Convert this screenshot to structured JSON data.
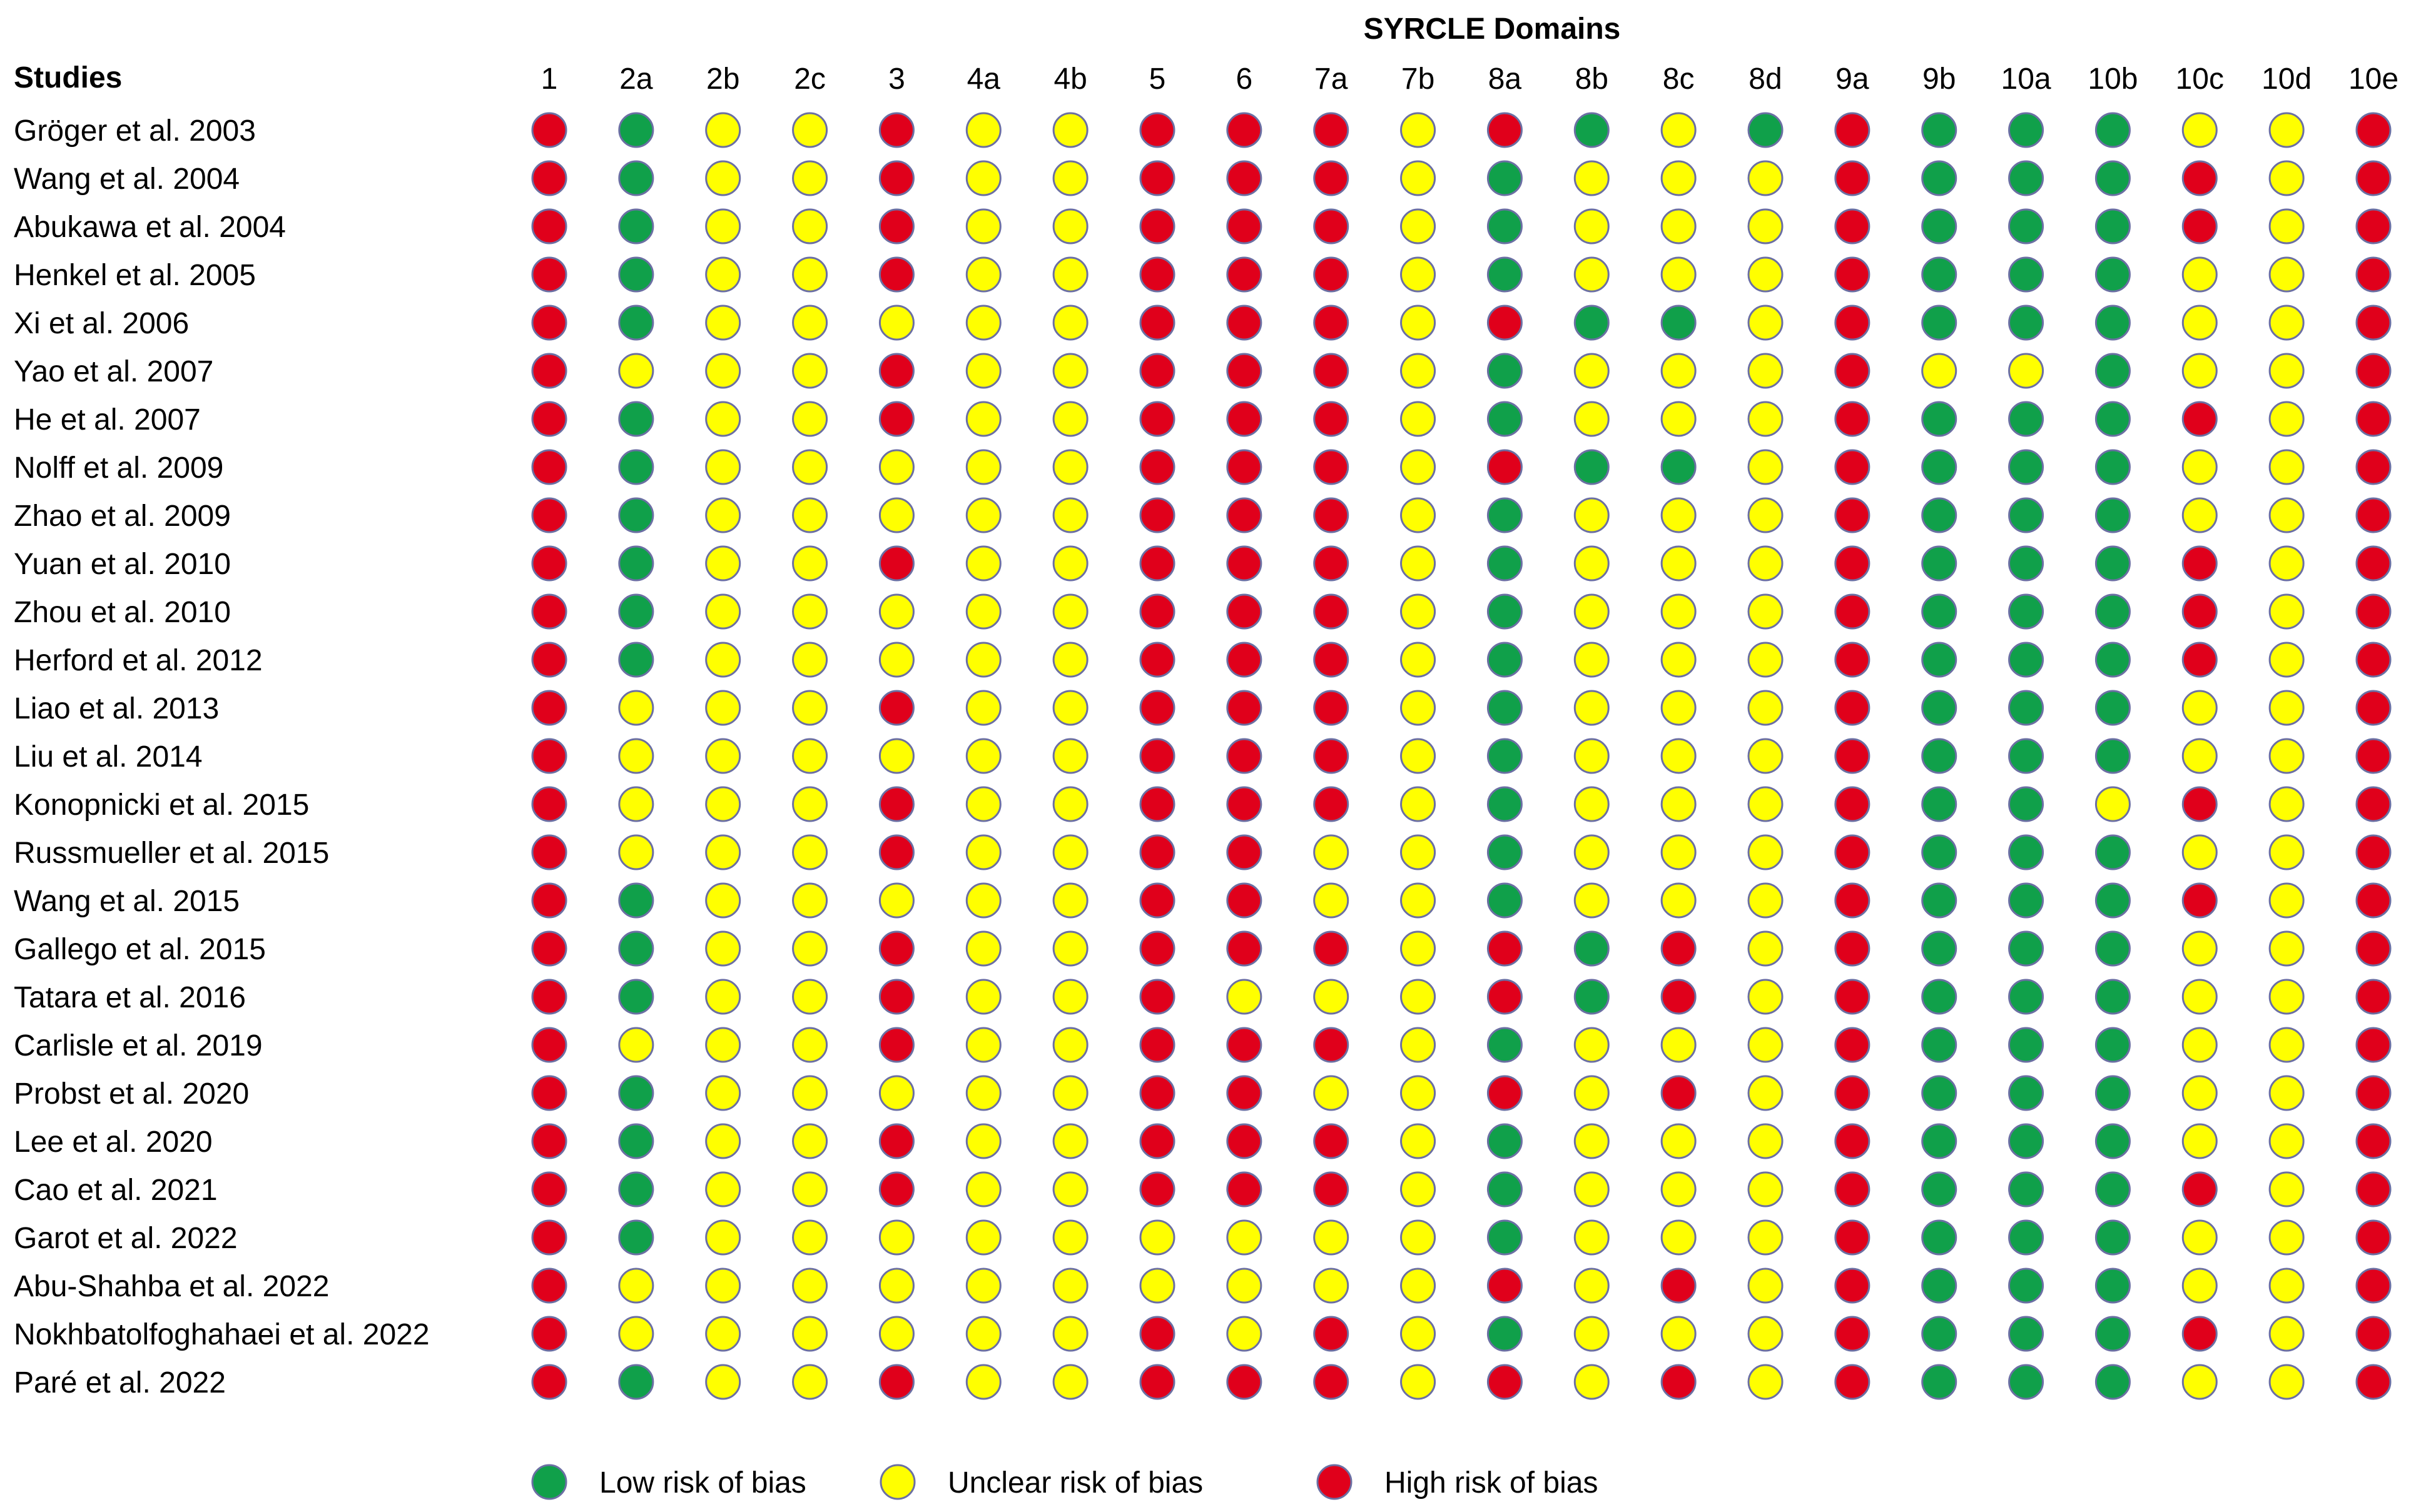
{
  "chart_data": {
    "type": "table",
    "title": "SYRCLE Domains",
    "row_header": "Studies",
    "domains": [
      "1",
      "2a",
      "2b",
      "2c",
      "3",
      "4a",
      "4b",
      "5",
      "6",
      "7a",
      "7b",
      "8a",
      "8b",
      "8c",
      "8d",
      "9a",
      "9b",
      "10a",
      "10b",
      "10c",
      "10d",
      "10e"
    ],
    "rating_codes": {
      "L": "low",
      "U": "unclear",
      "H": "high"
    },
    "colors": {
      "L": "#10a04a",
      "U": "#ffff00",
      "H": "#e0001b",
      "outline": "#6b6fa3"
    },
    "legend": [
      {
        "code": "L",
        "label": "Low risk of bias"
      },
      {
        "code": "U",
        "label": "Unclear risk of bias"
      },
      {
        "code": "H",
        "label": "High risk of bias"
      }
    ],
    "studies": [
      {
        "name": "Gröger et al. 2003",
        "ratings": [
          "H",
          "L",
          "U",
          "U",
          "H",
          "U",
          "U",
          "H",
          "H",
          "H",
          "U",
          "H",
          "L",
          "U",
          "L",
          "H",
          "L",
          "L",
          "L",
          "U",
          "U",
          "H"
        ]
      },
      {
        "name": "Wang et al. 2004",
        "ratings": [
          "H",
          "L",
          "U",
          "U",
          "H",
          "U",
          "U",
          "H",
          "H",
          "H",
          "U",
          "L",
          "U",
          "U",
          "U",
          "H",
          "L",
          "L",
          "L",
          "H",
          "U",
          "H"
        ]
      },
      {
        "name": "Abukawa et al. 2004",
        "ratings": [
          "H",
          "L",
          "U",
          "U",
          "H",
          "U",
          "U",
          "H",
          "H",
          "H",
          "U",
          "L",
          "U",
          "U",
          "U",
          "H",
          "L",
          "L",
          "L",
          "H",
          "U",
          "H"
        ]
      },
      {
        "name": "Henkel et al. 2005",
        "ratings": [
          "H",
          "L",
          "U",
          "U",
          "H",
          "U",
          "U",
          "H",
          "H",
          "H",
          "U",
          "L",
          "U",
          "U",
          "U",
          "H",
          "L",
          "L",
          "L",
          "U",
          "U",
          "H"
        ]
      },
      {
        "name": "Xi et al. 2006",
        "ratings": [
          "H",
          "L",
          "U",
          "U",
          "U",
          "U",
          "U",
          "H",
          "H",
          "H",
          "U",
          "H",
          "L",
          "L",
          "U",
          "H",
          "L",
          "L",
          "L",
          "U",
          "U",
          "H"
        ]
      },
      {
        "name": "Yao et al. 2007",
        "ratings": [
          "H",
          "U",
          "U",
          "U",
          "H",
          "U",
          "U",
          "H",
          "H",
          "H",
          "U",
          "L",
          "U",
          "U",
          "U",
          "H",
          "U",
          "U",
          "L",
          "U",
          "U",
          "H"
        ]
      },
      {
        "name": "He et al. 2007",
        "ratings": [
          "H",
          "L",
          "U",
          "U",
          "H",
          "U",
          "U",
          "H",
          "H",
          "H",
          "U",
          "L",
          "U",
          "U",
          "U",
          "H",
          "L",
          "L",
          "L",
          "H",
          "U",
          "H"
        ]
      },
      {
        "name": "Nolff et al. 2009",
        "ratings": [
          "H",
          "L",
          "U",
          "U",
          "U",
          "U",
          "U",
          "H",
          "H",
          "H",
          "U",
          "H",
          "L",
          "L",
          "U",
          "H",
          "L",
          "L",
          "L",
          "U",
          "U",
          "H"
        ]
      },
      {
        "name": "Zhao et al. 2009",
        "ratings": [
          "H",
          "L",
          "U",
          "U",
          "U",
          "U",
          "U",
          "H",
          "H",
          "H",
          "U",
          "L",
          "U",
          "U",
          "U",
          "H",
          "L",
          "L",
          "L",
          "U",
          "U",
          "H"
        ]
      },
      {
        "name": "Yuan et al. 2010",
        "ratings": [
          "H",
          "L",
          "U",
          "U",
          "H",
          "U",
          "U",
          "H",
          "H",
          "H",
          "U",
          "L",
          "U",
          "U",
          "U",
          "H",
          "L",
          "L",
          "L",
          "H",
          "U",
          "H"
        ]
      },
      {
        "name": "Zhou et al. 2010",
        "ratings": [
          "H",
          "L",
          "U",
          "U",
          "U",
          "U",
          "U",
          "H",
          "H",
          "H",
          "U",
          "L",
          "U",
          "U",
          "U",
          "H",
          "L",
          "L",
          "L",
          "H",
          "U",
          "H"
        ]
      },
      {
        "name": "Herford et al. 2012",
        "ratings": [
          "H",
          "L",
          "U",
          "U",
          "U",
          "U",
          "U",
          "H",
          "H",
          "H",
          "U",
          "L",
          "U",
          "U",
          "U",
          "H",
          "L",
          "L",
          "L",
          "H",
          "U",
          "H"
        ]
      },
      {
        "name": "Liao et al. 2013",
        "ratings": [
          "H",
          "U",
          "U",
          "U",
          "H",
          "U",
          "U",
          "H",
          "H",
          "H",
          "U",
          "L",
          "U",
          "U",
          "U",
          "H",
          "L",
          "L",
          "L",
          "U",
          "U",
          "H"
        ]
      },
      {
        "name": "Liu et al. 2014",
        "ratings": [
          "H",
          "U",
          "U",
          "U",
          "U",
          "U",
          "U",
          "H",
          "H",
          "H",
          "U",
          "L",
          "U",
          "U",
          "U",
          "H",
          "L",
          "L",
          "L",
          "U",
          "U",
          "H"
        ]
      },
      {
        "name": "Konopnicki et al. 2015",
        "ratings": [
          "H",
          "U",
          "U",
          "U",
          "H",
          "U",
          "U",
          "H",
          "H",
          "H",
          "U",
          "L",
          "U",
          "U",
          "U",
          "H",
          "L",
          "L",
          "U",
          "H",
          "U",
          "H"
        ]
      },
      {
        "name": "Russmueller et al. 2015",
        "ratings": [
          "H",
          "U",
          "U",
          "U",
          "H",
          "U",
          "U",
          "H",
          "H",
          "U",
          "U",
          "L",
          "U",
          "U",
          "U",
          "H",
          "L",
          "L",
          "L",
          "U",
          "U",
          "H"
        ]
      },
      {
        "name": "Wang et al. 2015",
        "ratings": [
          "H",
          "L",
          "U",
          "U",
          "U",
          "U",
          "U",
          "H",
          "H",
          "U",
          "U",
          "L",
          "U",
          "U",
          "U",
          "H",
          "L",
          "L",
          "L",
          "H",
          "U",
          "H"
        ]
      },
      {
        "name": "Gallego et al. 2015",
        "ratings": [
          "H",
          "L",
          "U",
          "U",
          "H",
          "U",
          "U",
          "H",
          "H",
          "H",
          "U",
          "H",
          "L",
          "H",
          "U",
          "H",
          "L",
          "L",
          "L",
          "U",
          "U",
          "H"
        ]
      },
      {
        "name": "Tatara et al. 2016",
        "ratings": [
          "H",
          "L",
          "U",
          "U",
          "H",
          "U",
          "U",
          "H",
          "U",
          "U",
          "U",
          "H",
          "L",
          "H",
          "U",
          "H",
          "L",
          "L",
          "L",
          "U",
          "U",
          "H"
        ]
      },
      {
        "name": "Carlisle et al. 2019",
        "ratings": [
          "H",
          "U",
          "U",
          "U",
          "H",
          "U",
          "U",
          "H",
          "H",
          "H",
          "U",
          "L",
          "U",
          "U",
          "U",
          "H",
          "L",
          "L",
          "L",
          "U",
          "U",
          "H"
        ]
      },
      {
        "name": "Probst et al. 2020",
        "ratings": [
          "H",
          "L",
          "U",
          "U",
          "U",
          "U",
          "U",
          "H",
          "H",
          "U",
          "U",
          "H",
          "U",
          "H",
          "U",
          "H",
          "L",
          "L",
          "L",
          "U",
          "U",
          "H"
        ]
      },
      {
        "name": "Lee et al. 2020",
        "ratings": [
          "H",
          "L",
          "U",
          "U",
          "H",
          "U",
          "U",
          "H",
          "H",
          "H",
          "U",
          "L",
          "U",
          "U",
          "U",
          "H",
          "L",
          "L",
          "L",
          "U",
          "U",
          "H"
        ]
      },
      {
        "name": "Cao et al. 2021",
        "ratings": [
          "H",
          "L",
          "U",
          "U",
          "H",
          "U",
          "U",
          "H",
          "H",
          "H",
          "U",
          "L",
          "U",
          "U",
          "U",
          "H",
          "L",
          "L",
          "L",
          "H",
          "U",
          "H"
        ]
      },
      {
        "name": "Garot et al. 2022",
        "ratings": [
          "H",
          "L",
          "U",
          "U",
          "U",
          "U",
          "U",
          "U",
          "U",
          "U",
          "U",
          "L",
          "U",
          "U",
          "U",
          "H",
          "L",
          "L",
          "L",
          "U",
          "U",
          "H"
        ]
      },
      {
        "name": "Abu-Shahba et al. 2022",
        "ratings": [
          "H",
          "U",
          "U",
          "U",
          "U",
          "U",
          "U",
          "U",
          "U",
          "U",
          "U",
          "H",
          "U",
          "H",
          "U",
          "H",
          "L",
          "L",
          "L",
          "U",
          "U",
          "H"
        ]
      },
      {
        "name": "Nokhbatolfoghahaei et al. 2022",
        "ratings": [
          "H",
          "U",
          "U",
          "U",
          "U",
          "U",
          "U",
          "H",
          "U",
          "H",
          "U",
          "L",
          "U",
          "U",
          "U",
          "H",
          "L",
          "L",
          "L",
          "H",
          "U",
          "H"
        ]
      },
      {
        "name": "Paré et al. 2022",
        "ratings": [
          "H",
          "L",
          "U",
          "U",
          "H",
          "U",
          "U",
          "H",
          "H",
          "H",
          "U",
          "H",
          "U",
          "H",
          "U",
          "H",
          "L",
          "L",
          "L",
          "U",
          "U",
          "H"
        ]
      }
    ]
  }
}
